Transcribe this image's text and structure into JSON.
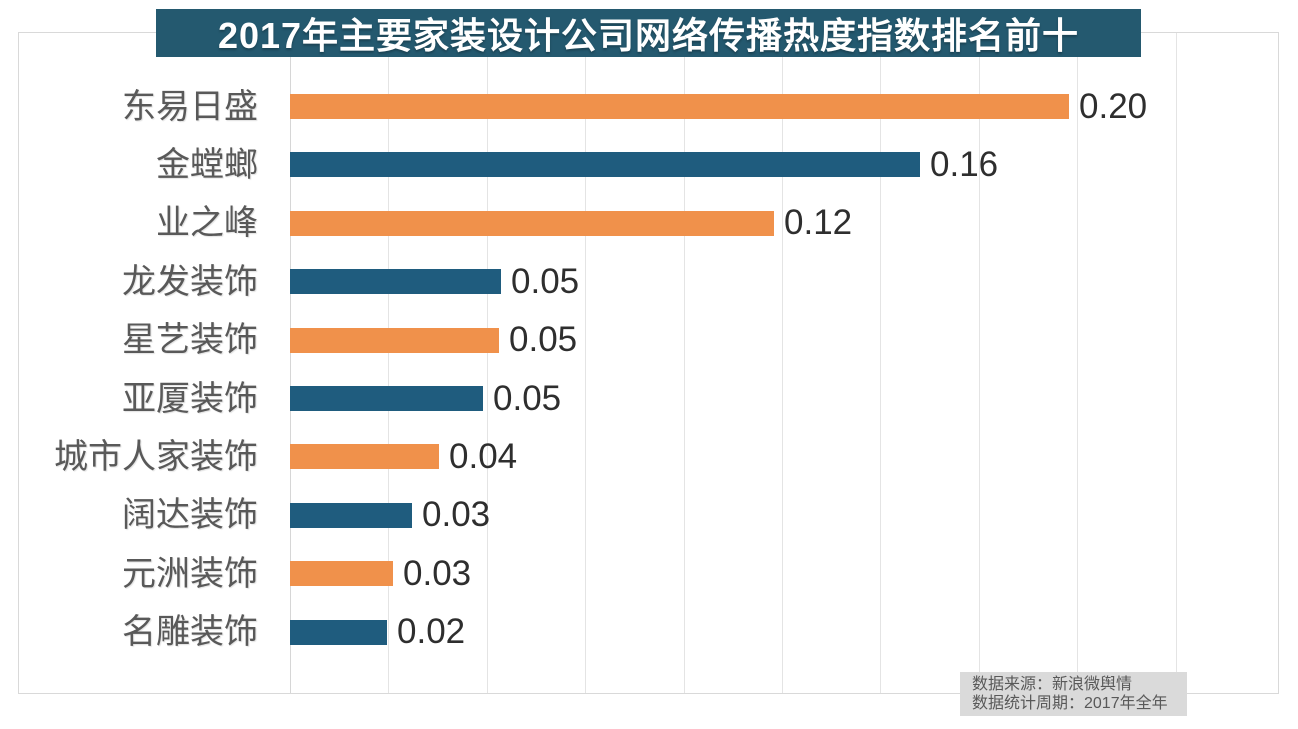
{
  "colors": {
    "banner_background": "#24596F",
    "bar_orange": "#F0914B",
    "bar_blue": "#1F5C7E",
    "category_text": "#595959",
    "value_text": "#2E2E2E",
    "grid_line": "#E4E4E4",
    "frame_border": "#D9D9D9",
    "footer_background": "#DADADA",
    "footer_text": "#595959"
  },
  "chart_data": {
    "type": "bar",
    "orientation": "horizontal",
    "title": "2017年主要家装设计公司网络传播热度指数排名前十",
    "categories": [
      "东易日盛",
      "金螳螂",
      "业之峰",
      "龙发装饰",
      "星艺装饰",
      "亚厦装饰",
      "城市人家装饰",
      "阔达装饰",
      "元洲装饰",
      "名雕装饰"
    ],
    "values": [
      0.2,
      0.16,
      0.12,
      0.05,
      0.05,
      0.05,
      0.04,
      0.03,
      0.03,
      0.02
    ],
    "value_labels": [
      "0.20",
      "0.16",
      "0.12",
      "0.05",
      "0.05",
      "0.05",
      "0.04",
      "0.03",
      "0.03",
      "0.02"
    ],
    "bar_lengths_est": [
      0.198,
      0.16,
      0.123,
      0.0536,
      0.0531,
      0.049,
      0.0379,
      0.031,
      0.0262,
      0.0246
    ],
    "xlabel": "",
    "ylabel": "",
    "xlim": [
      0,
      0.25
    ],
    "gridline_interval": 0.025,
    "grid": true,
    "legend": false,
    "bar_color_pattern": [
      "#F0914B",
      "#1F5C7E"
    ]
  },
  "source": {
    "line1": "数据来源：新浪微舆情",
    "line2": "数据统计周期：2017年全年"
  }
}
